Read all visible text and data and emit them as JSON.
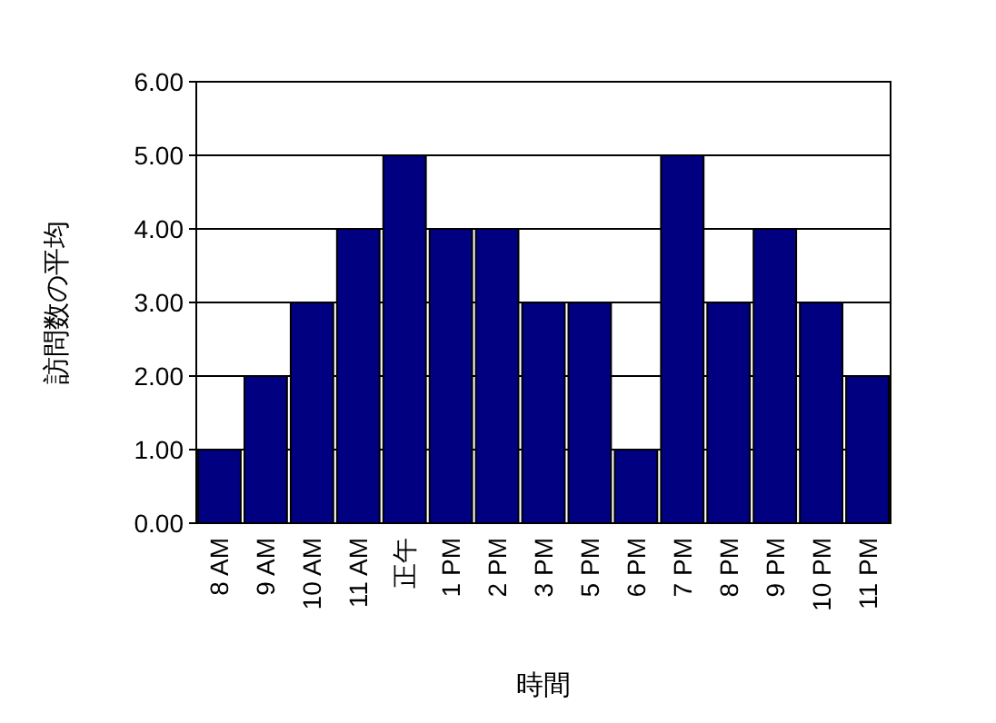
{
  "chart_data": {
    "type": "bar",
    "xlabel": "時間",
    "ylabel": "訪問数の平均",
    "categories": [
      "8 AM",
      "9 AM",
      "10 AM",
      "11 AM",
      "正午",
      "1 PM",
      "2 PM",
      "3 PM",
      "5 PM",
      "6 PM",
      "7 PM",
      "8 PM",
      "9 PM",
      "10 PM",
      "11 PM"
    ],
    "values": [
      1,
      2,
      3,
      4,
      5,
      4,
      4,
      3,
      3,
      1,
      5,
      3,
      4,
      3,
      2
    ],
    "color": "#000080",
    "ylim": [
      0,
      6
    ],
    "yticks": [
      {
        "value": 0,
        "label": "0.00"
      },
      {
        "value": 1,
        "label": "1.00"
      },
      {
        "value": 2,
        "label": "2.00"
      },
      {
        "value": 3,
        "label": "3.00"
      },
      {
        "value": 4,
        "label": "4.00"
      },
      {
        "value": 5,
        "label": "5.00"
      },
      {
        "value": 6,
        "label": "6.00"
      }
    ],
    "grid": "y"
  }
}
